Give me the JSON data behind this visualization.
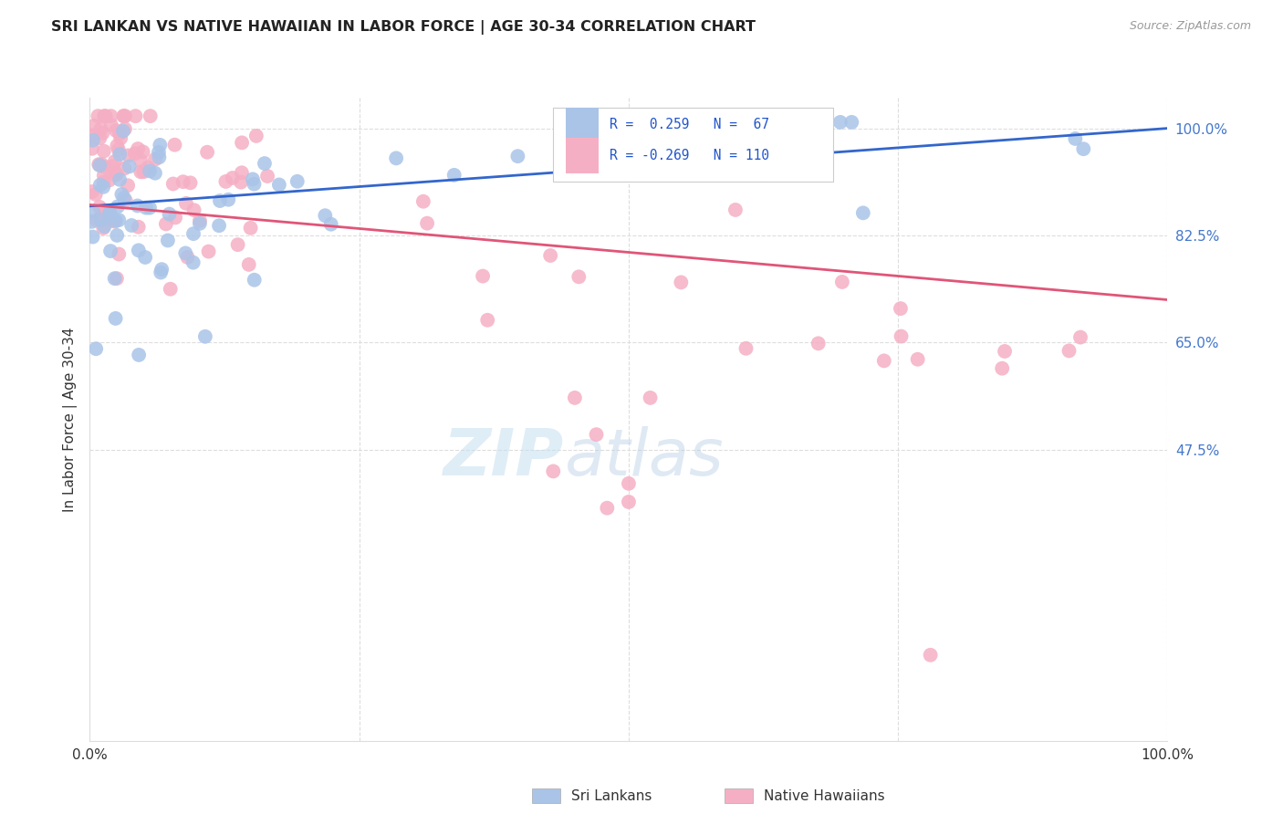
{
  "title": "SRI LANKAN VS NATIVE HAWAIIAN IN LABOR FORCE | AGE 30-34 CORRELATION CHART",
  "source": "Source: ZipAtlas.com",
  "ylabel": "In Labor Force | Age 30-34",
  "ytick_labels": [
    "100.0%",
    "82.5%",
    "65.0%",
    "47.5%"
  ],
  "ytick_values": [
    1.0,
    0.825,
    0.65,
    0.475
  ],
  "xlim": [
    0.0,
    1.0
  ],
  "ylim": [
    0.0,
    1.05
  ],
  "sri_lankan_color": "#aac4e8",
  "native_hawaiian_color": "#f5afc4",
  "sri_lankan_line_color": "#3366cc",
  "native_hawaiian_line_color": "#e05578",
  "legend_line1": "R =  0.259   N =  67",
  "legend_line2": "R = -0.269   N = 110",
  "watermark_zip": "ZIP",
  "watermark_atlas": "atlas",
  "grid_color": "#dddddd",
  "title_color": "#222222",
  "source_color": "#999999",
  "ytick_color": "#4477cc",
  "xtick_color": "#333333"
}
